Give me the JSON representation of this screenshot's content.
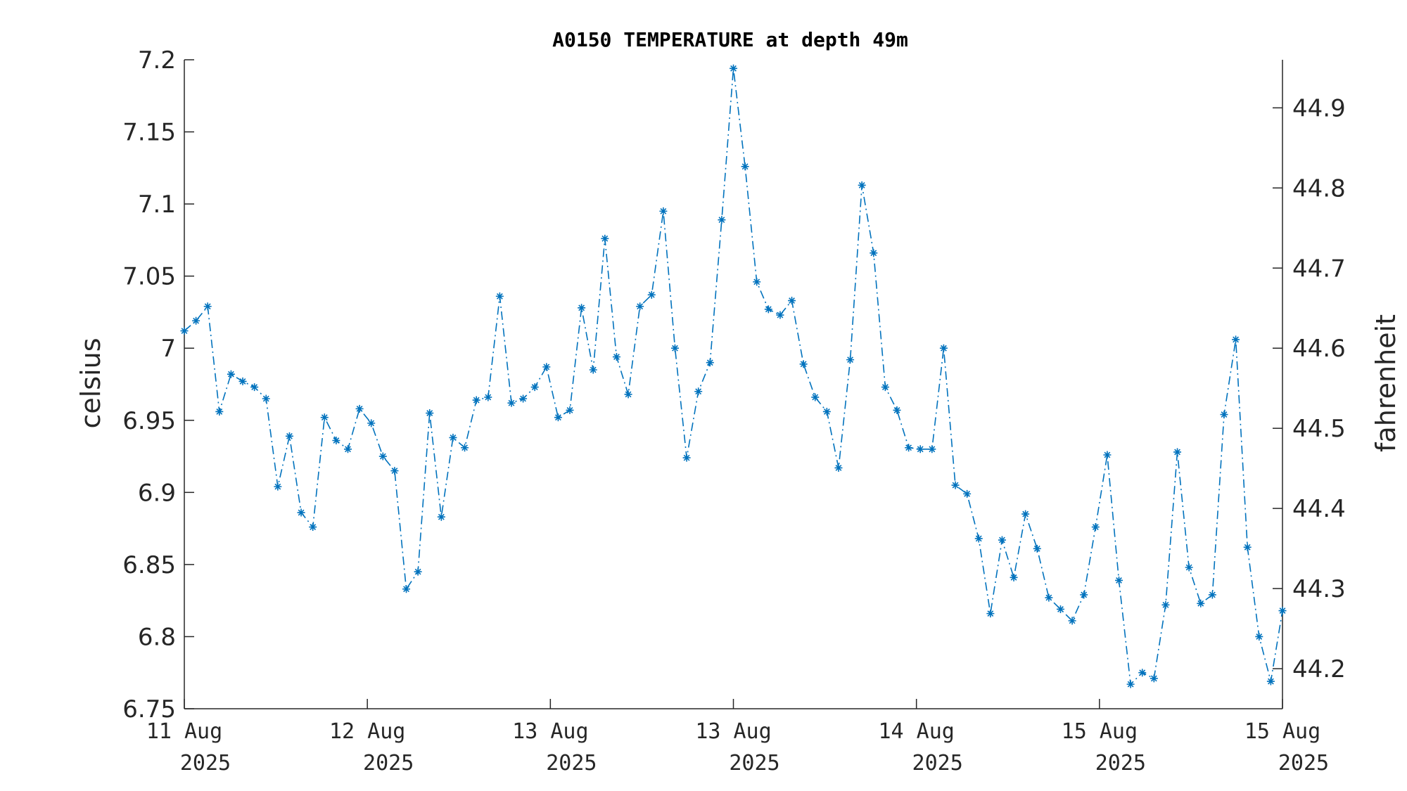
{
  "chart_data": {
    "type": "line",
    "title": "A0150 TEMPERATURE at depth 49m",
    "ylabel": "celsius",
    "ylabel_right": "fahrenheit",
    "xlabel": "",
    "ylim": [
      6.75,
      7.2
    ],
    "ylim_right": [
      44.15,
      44.96
    ],
    "yticks": [
      "6.75",
      "6.8",
      "6.85",
      "6.9",
      "6.95",
      "7",
      "7.05",
      "7.1",
      "7.15",
      "7.2"
    ],
    "yticks_right": [
      "44.2",
      "44.3",
      "44.4",
      "44.5",
      "44.6",
      "44.7",
      "44.8",
      "44.9"
    ],
    "xticks": [
      {
        "day": "11 Aug",
        "year": "2025"
      },
      {
        "day": "12 Aug",
        "year": "2025"
      },
      {
        "day": "13 Aug",
        "year": "2025"
      },
      {
        "day": "13 Aug",
        "year": "2025"
      },
      {
        "day": "14 Aug",
        "year": "2025"
      },
      {
        "day": "15 Aug",
        "year": "2025"
      },
      {
        "day": "15 Aug",
        "year": "2025"
      }
    ],
    "grid": false,
    "line_style": "dash-dot",
    "marker": "asterisk",
    "color": "#0072bd",
    "series": [
      {
        "values": [
          7.012,
          7.019,
          7.029,
          6.956,
          6.982,
          6.977,
          6.973,
          6.965,
          6.904,
          6.939,
          6.886,
          6.876,
          6.952,
          6.936,
          6.93,
          6.958,
          6.948,
          6.925,
          6.915,
          6.833,
          6.845,
          6.955,
          6.883,
          6.938,
          6.931,
          6.964,
          6.966,
          7.036,
          6.962,
          6.965,
          6.973,
          6.987,
          6.952,
          6.957,
          7.028,
          6.985,
          7.076,
          6.994,
          6.968,
          7.029,
          7.037,
          7.095,
          7.0,
          6.924,
          6.97,
          6.99,
          7.089,
          7.194,
          7.126,
          7.046,
          7.027,
          7.023,
          7.033,
          6.989,
          6.966,
          6.956,
          6.917,
          6.992,
          7.113,
          7.066,
          6.973,
          6.957,
          6.931,
          6.93,
          6.93,
          7.0,
          6.905,
          6.899,
          6.868,
          6.816,
          6.867,
          6.841,
          6.885,
          6.861,
          6.827,
          6.819,
          6.811,
          6.829,
          6.876,
          6.926,
          6.839,
          6.767,
          6.775,
          6.771,
          6.822,
          6.928,
          6.848,
          6.823,
          6.829,
          6.954,
          7.006,
          6.862,
          6.8,
          6.769,
          6.818
        ]
      }
    ]
  }
}
